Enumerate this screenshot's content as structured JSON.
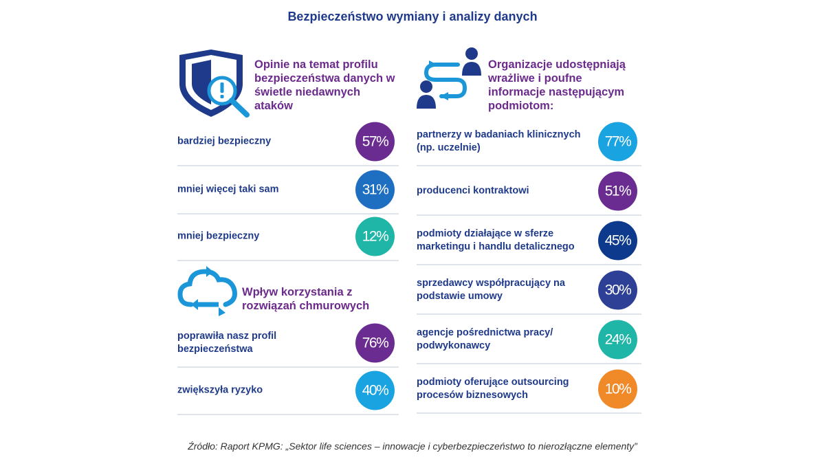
{
  "title": "Bezpieczeństwo wymiany i analizy danych",
  "source": "Źródło: Raport KPMG: „Sektor life sciences – innowacje i cyberbezpieczeństwo to nierozłączne elementy”",
  "colors": {
    "purple": "#6a2c91",
    "blue": "#1e6fc1",
    "teal": "#1fb6a8",
    "light_blue": "#19a3e0",
    "navy": "#0d3a8c",
    "orange": "#f08a28"
  },
  "icons": {
    "section1": "shield-magnifier-icon",
    "section2": "people-exchange-icon",
    "section3": "cloud-sync-icon"
  },
  "chart_data": [
    {
      "type": "table",
      "title": "Opinie na temat profilu bezpieczeństwa danych w świetle niedawnych ataków",
      "categories": [
        "bardziej bezpieczny",
        "mniej więcej taki sam",
        "mniej bezpieczny"
      ],
      "values": [
        57,
        31,
        12
      ],
      "labels": [
        "57%",
        "31%",
        "12%"
      ],
      "colors": [
        "#6a2c91",
        "#1e6fc1",
        "#1fb6a8"
      ]
    },
    {
      "type": "table",
      "title": "Wpływ korzystania z rozwiązań chmurowych",
      "categories": [
        "poprawiła nasz profil bezpieczeństwa",
        "zwiększyła ryzyko"
      ],
      "values": [
        76,
        40
      ],
      "labels": [
        "76%",
        "40%"
      ],
      "colors": [
        "#6a2c91",
        "#19a3e0"
      ]
    },
    {
      "type": "table",
      "title": "Organizacje udostępniają wrażliwe i poufne informacje następującym podmiotom:",
      "categories": [
        "partnerzy w badaniach klinicznych (np. uczelnie)",
        "producenci kontraktowi",
        "podmioty działające w sferze marketingu i handlu detalicznego",
        "sprzedawcy współpracujący na podstawie umowy",
        "agencje pośrednictwa pracy/ podwykonawcy",
        "podmioty oferujące outsourcing procesów biznesowych"
      ],
      "values": [
        77,
        51,
        45,
        30,
        24,
        10
      ],
      "labels": [
        "77%",
        "51%",
        "45%",
        "30%",
        "24%",
        "10%"
      ],
      "colors": [
        "#19a3e0",
        "#6a2c91",
        "#0d3a8c",
        "#2e3f96",
        "#1fb6a8",
        "#f08a28"
      ]
    }
  ]
}
